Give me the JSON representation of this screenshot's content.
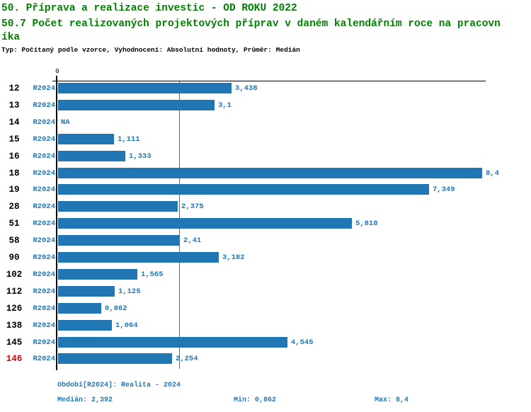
{
  "header": {
    "title_line1": "50. Příprava a realizace investic - OD ROKU 2022",
    "title_line2": "50.7 Počet realizovaných projektových příprav v daném kalendářním roce na pracovníka",
    "subtitle": "Typ: Počítaný podle vzorce, Vyhodnocení: Absolutní hodnoty, Průměr: Medián",
    "title_color": "#008000"
  },
  "chart_data": {
    "type": "bar",
    "orientation": "horizontal",
    "axis_zero_label": "0",
    "xlim": [
      0,
      8.47
    ],
    "grid": false,
    "median_value": 2.392,
    "na_label": "NA",
    "bar_color": "#2177B4",
    "text_blue": "#2177B4",
    "highlight_color": "#E00000",
    "categories": [
      "12",
      "13",
      "14",
      "15",
      "16",
      "18",
      "19",
      "28",
      "51",
      "58",
      "90",
      "102",
      "112",
      "126",
      "138",
      "145",
      "146"
    ],
    "rows": [
      {
        "category": "12",
        "period": "R2024",
        "value": 3.438,
        "value_label": "3,438",
        "highlight": false
      },
      {
        "category": "13",
        "period": "R2024",
        "value": 3.1,
        "value_label": "3,1",
        "highlight": false
      },
      {
        "category": "14",
        "period": "R2024",
        "value": null,
        "value_label": "NA",
        "highlight": false
      },
      {
        "category": "15",
        "period": "R2024",
        "value": 1.111,
        "value_label": "1,111",
        "highlight": false
      },
      {
        "category": "16",
        "period": "R2024",
        "value": 1.333,
        "value_label": "1,333",
        "highlight": false
      },
      {
        "category": "18",
        "period": "R2024",
        "value": 8.4,
        "value_label": "8,4",
        "highlight": false
      },
      {
        "category": "19",
        "period": "R2024",
        "value": 7.349,
        "value_label": "7,349",
        "highlight": false
      },
      {
        "category": "28",
        "period": "R2024",
        "value": 2.375,
        "value_label": "2,375",
        "highlight": false
      },
      {
        "category": "51",
        "period": "R2024",
        "value": 5.818,
        "value_label": "5,818",
        "highlight": false
      },
      {
        "category": "58",
        "period": "R2024",
        "value": 2.41,
        "value_label": "2,41",
        "highlight": false
      },
      {
        "category": "90",
        "period": "R2024",
        "value": 3.182,
        "value_label": "3,182",
        "highlight": false
      },
      {
        "category": "102",
        "period": "R2024",
        "value": 1.565,
        "value_label": "1,565",
        "highlight": false
      },
      {
        "category": "112",
        "period": "R2024",
        "value": 1.125,
        "value_label": "1,125",
        "highlight": false
      },
      {
        "category": "126",
        "period": "R2024",
        "value": 0.862,
        "value_label": "0,862",
        "highlight": false
      },
      {
        "category": "138",
        "period": "R2024",
        "value": 1.064,
        "value_label": "1,064",
        "highlight": false
      },
      {
        "category": "145",
        "period": "R2024",
        "value": 4.545,
        "value_label": "4,545",
        "highlight": false
      },
      {
        "category": "146",
        "period": "R2024",
        "value": 2.254,
        "value_label": "2,254",
        "highlight": true
      }
    ]
  },
  "footer": {
    "period_info": "Období[R2024]: Realita - 2024",
    "median": "Medián: 2,392",
    "min": "Min: 0,862",
    "max": "Max: 8,4"
  }
}
